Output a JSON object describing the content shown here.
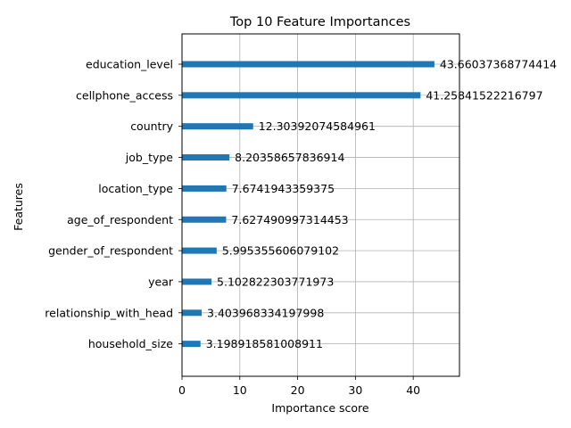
{
  "chart_data": {
    "type": "bar",
    "orientation": "horizontal",
    "title": "Top 10 Feature Importances",
    "xlabel": "Importance score",
    "ylabel": "Features",
    "xlim": [
      0,
      48
    ],
    "x_ticks": [
      0,
      10,
      20,
      30,
      40
    ],
    "grid": true,
    "bar_color": "#1f77b4",
    "categories": [
      "education_level",
      "cellphone_access",
      "country",
      "job_type",
      "location_type",
      "age_of_respondent",
      "gender_of_respondent",
      "year",
      "relationship_with_head",
      "household_size"
    ],
    "values": [
      43.66037368774414,
      41.25841522216797,
      12.30392074584961,
      8.20358657836914,
      7.6741943359375,
      7.627490997314453,
      5.995355606079102,
      5.102822303771973,
      3.403968334197998,
      3.198918581008911
    ],
    "value_labels": [
      "43.66037368774414",
      "41.25841522216797",
      "12.30392074584961",
      "8.20358657836914",
      "7.6741943359375",
      "7.627490997314453",
      "5.995355606079102",
      "5.102822303771973",
      "3.403968334197998",
      "3.198918581008911"
    ]
  }
}
